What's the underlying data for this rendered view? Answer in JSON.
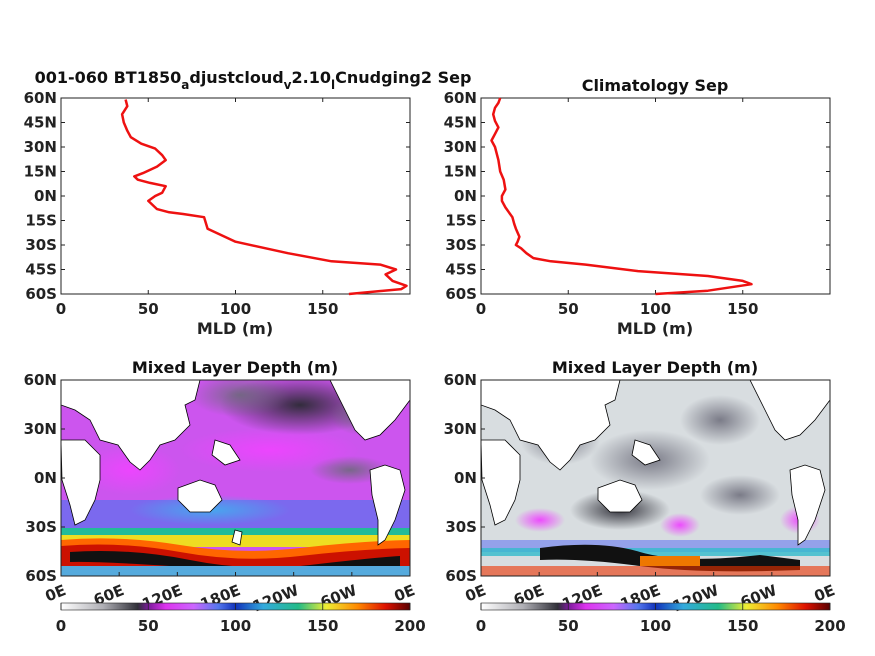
{
  "chart_data": [
    {
      "type": "line",
      "title_main": "001-060 BT1850",
      "title_sub1": "a",
      "title_mid1": "djustcloud",
      "title_sub2": "v",
      "title_mid2": "2.10",
      "title_sub3": "l",
      "title_end": "Cnudging2 Sep",
      "xlabel": "MLD (m)",
      "xlim": [
        0,
        200
      ],
      "ylim": [
        -60,
        60
      ],
      "xticks": [
        "0",
        "50",
        "100",
        "150"
      ],
      "yticks": [
        "60N",
        "45N",
        "30N",
        "15N",
        "0N",
        "15S",
        "30S",
        "45S",
        "60S"
      ],
      "line_color": "#ee1111",
      "series": [
        {
          "x": [
            165,
            195,
            198,
            190,
            186,
            192,
            183,
            155,
            130,
            100,
            84,
            82,
            70,
            62,
            55,
            50,
            54,
            58,
            60,
            51,
            44,
            42,
            47,
            55,
            60,
            58,
            54,
            46,
            40,
            38,
            36,
            35,
            38,
            37
          ],
          "y": [
            -60,
            -57,
            -55,
            -52,
            -48,
            -45,
            -42,
            -40,
            -35,
            -28,
            -20,
            -13,
            -11,
            -10,
            -8,
            -3,
            0,
            2,
            6,
            8,
            10,
            12,
            14,
            18,
            22,
            25,
            29,
            32,
            36,
            40,
            45,
            50,
            55,
            59
          ]
        }
      ]
    },
    {
      "type": "line",
      "title": "Climatology Sep",
      "xlabel": "MLD (m)",
      "xlim": [
        0,
        200
      ],
      "ylim": [
        -60,
        60
      ],
      "xticks": [
        "0",
        "50",
        "100",
        "150"
      ],
      "yticks": [
        "60N",
        "45N",
        "30N",
        "15N",
        "0N",
        "15S",
        "30S",
        "45S",
        "60S"
      ],
      "line_color": "#ee1111",
      "series": [
        {
          "x": [
            100,
            130,
            155,
            150,
            130,
            90,
            60,
            40,
            30,
            26,
            23,
            20,
            21,
            22,
            20,
            19,
            18,
            16,
            14,
            12,
            12,
            14,
            13,
            11,
            10,
            8,
            6,
            8,
            10,
            8,
            7,
            8,
            10,
            11
          ],
          "y": [
            -60,
            -58,
            -54,
            -52,
            -49,
            -46,
            -42,
            -40,
            -38,
            -35,
            -32,
            -30,
            -28,
            -25,
            -20,
            -17,
            -13,
            -10,
            -7,
            -3,
            0,
            4,
            10,
            15,
            22,
            30,
            34,
            38,
            42,
            46,
            50,
            54,
            57,
            60
          ]
        }
      ]
    },
    {
      "type": "heatmap",
      "title": "Mixed Layer Depth (m)",
      "yticks": [
        "60N",
        "30N",
        "0N",
        "30S",
        "60S"
      ],
      "xticks": [
        "0E",
        "60E",
        "120E",
        "180E",
        "120W",
        "60W",
        "0E"
      ],
      "colorbar_ticks": [
        "0",
        "50",
        "100",
        "150",
        "200"
      ],
      "colorbar_range": [
        0,
        200
      ]
    },
    {
      "type": "heatmap",
      "title": "Mixed Layer Depth (m)",
      "yticks": [
        "60N",
        "30N",
        "0N",
        "30S",
        "60S"
      ],
      "xticks": [
        "0E",
        "60E",
        "120E",
        "180E",
        "120W",
        "60W",
        "0E"
      ],
      "colorbar_ticks": [
        "0",
        "50",
        "100",
        "150",
        "200"
      ],
      "colorbar_range": [
        0,
        200
      ]
    }
  ]
}
